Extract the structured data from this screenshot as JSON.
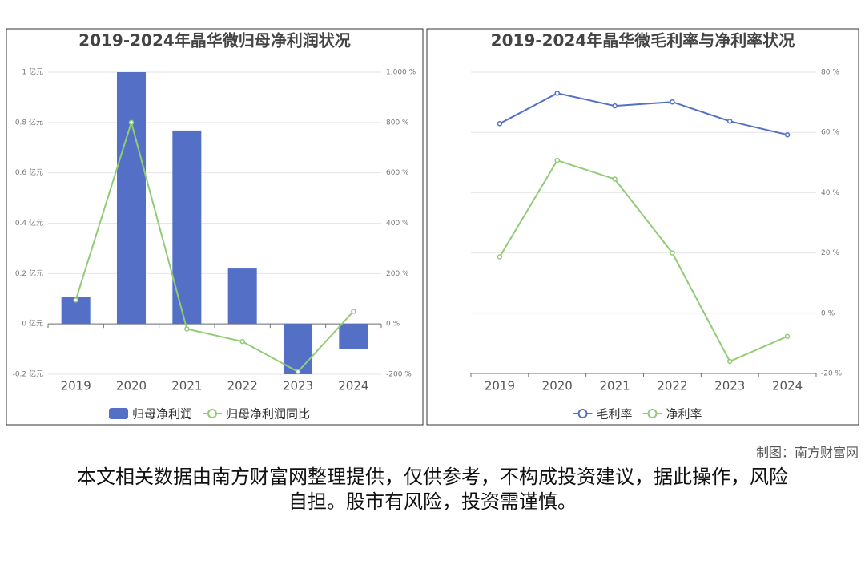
{
  "chart_data": [
    {
      "type": "bar",
      "title": "2019-2024年晶华微归母净利润状况",
      "categories": [
        "2019",
        "2020",
        "2021",
        "2022",
        "2023",
        "2024"
      ],
      "series": [
        {
          "name": "归母净利润",
          "type": "bar",
          "color": "#5470c6",
          "values": [
            0.108,
            1.0,
            0.768,
            0.22,
            -0.2,
            -0.099
          ]
        },
        {
          "name": "归母净利润同比",
          "type": "line",
          "axis": "y2",
          "color": "#91cc75",
          "values": [
            95,
            800,
            -20,
            -70,
            -190,
            50
          ]
        }
      ],
      "ylim": [
        -0.2,
        1
      ],
      "yticks": [
        {
          "value": -0.2,
          "label": "-0.2 亿元"
        },
        {
          "value": 0,
          "label": "0 亿元"
        },
        {
          "value": 0.2,
          "label": "0.2 亿元"
        },
        {
          "value": 0.4,
          "label": "0.4 亿元"
        },
        {
          "value": 0.6,
          "label": "0.6 亿元"
        },
        {
          "value": 0.8,
          "label": "0.8 亿元"
        },
        {
          "value": 1,
          "label": "1 亿元"
        }
      ],
      "y2lim": [
        -200,
        1000
      ],
      "y2ticks": [
        {
          "value": -200,
          "label": "-200 %"
        },
        {
          "value": 0,
          "label": "0 %"
        },
        {
          "value": 200,
          "label": "200 %"
        },
        {
          "value": 400,
          "label": "400 %"
        },
        {
          "value": 600,
          "label": "600 %"
        },
        {
          "value": 800,
          "label": "800 %"
        },
        {
          "value": 1000,
          "label": "1,000 %"
        }
      ],
      "grid": true
    },
    {
      "type": "line",
      "title": "2019-2024年晶华微毛利率与净利率状况",
      "categories": [
        "2019",
        "2020",
        "2021",
        "2022",
        "2023",
        "2024"
      ],
      "series": [
        {
          "name": "毛利率",
          "type": "line",
          "color": "#5470c6",
          "values": [
            62.9,
            73,
            68.8,
            70.1,
            63.7,
            59.2
          ]
        },
        {
          "name": "净利率",
          "type": "line",
          "color": "#91cc75",
          "values": [
            18.7,
            50.7,
            44.5,
            20,
            -16,
            -7.7
          ]
        }
      ],
      "ylim": [
        -20,
        80
      ],
      "yticks": [
        {
          "value": -20,
          "label": "-20 %"
        },
        {
          "value": 0,
          "label": "0 %"
        },
        {
          "value": 20,
          "label": "20 %"
        },
        {
          "value": 40,
          "label": "40 %"
        },
        {
          "value": 60,
          "label": "60 %"
        },
        {
          "value": 80,
          "label": "80 %"
        }
      ],
      "grid": true
    }
  ],
  "footer": {
    "credit": "制图：南方财富网",
    "disclaimer": "本文相关数据由南方财富网整理提供，仅供参考，不构成投资建议，据此操作，风险自担。股市有风险，投资需谨慎。"
  }
}
